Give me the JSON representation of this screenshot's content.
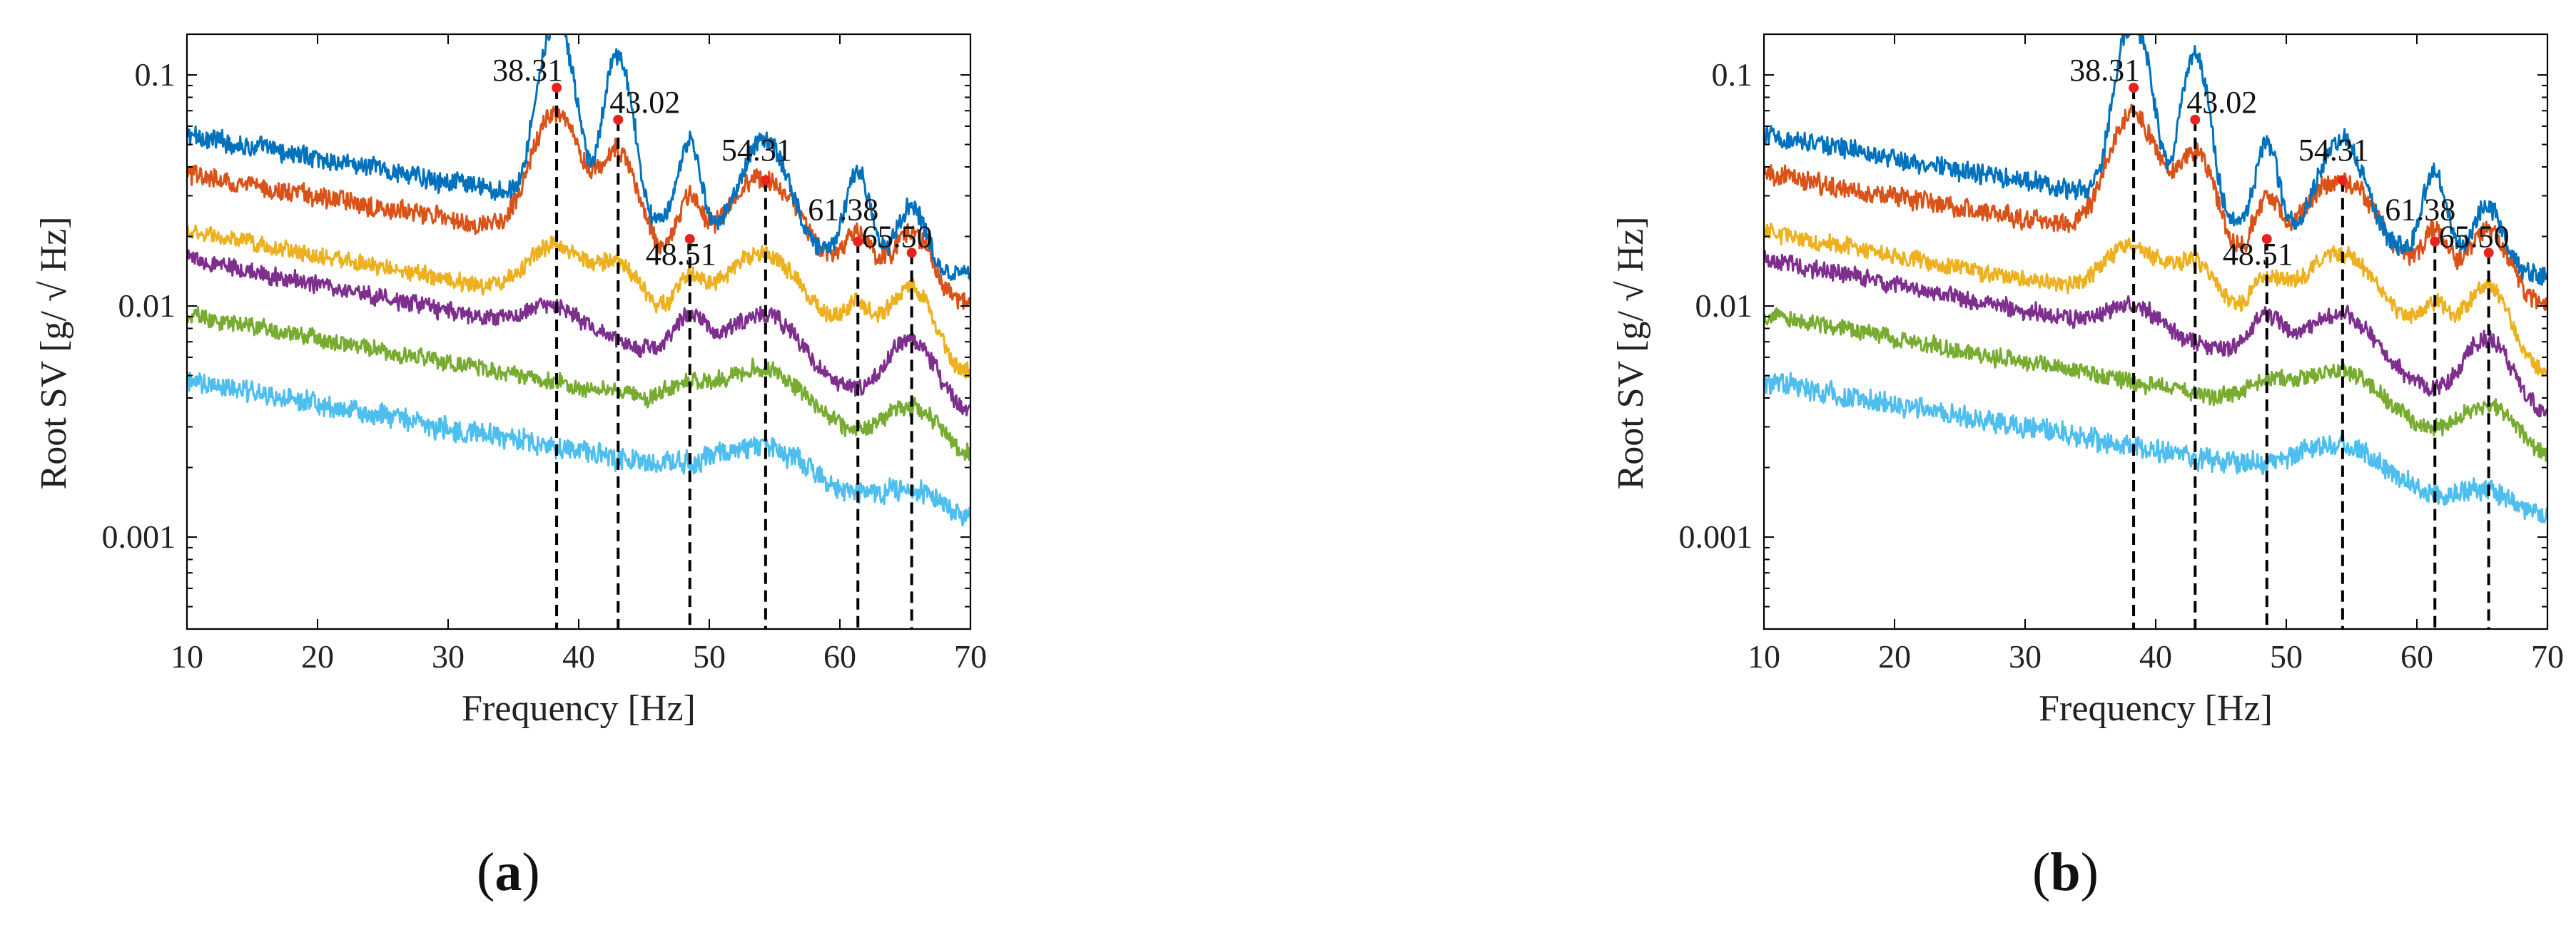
{
  "chart_data": [
    {
      "panel": "(a)",
      "type": "line",
      "xlabel": "Frequency [Hz]",
      "ylabel": "Root SV [g/ √ Hz]",
      "xlim": [
        10,
        70
      ],
      "ylim": [
        0.0004,
        0.15
      ],
      "yscale": "log",
      "xticks": [
        10,
        20,
        30,
        40,
        50,
        60,
        70
      ],
      "yticks": [
        {
          "value": 0.001,
          "label": "0.001"
        },
        {
          "value": 0.01,
          "label": "0.01"
        },
        {
          "value": 0.1,
          "label": "0.1"
        }
      ],
      "grid": false,
      "peaks": [
        {
          "label": "38.31",
          "x": 38.31,
          "y": 0.088
        },
        {
          "label": "43.02",
          "x": 43.02,
          "y": 0.064
        },
        {
          "label": "48.51",
          "x": 48.51,
          "y": 0.0195
        },
        {
          "label": "54.31",
          "x": 54.31,
          "y": 0.035
        },
        {
          "label": "61.38",
          "x": 61.38,
          "y": 0.019
        },
        {
          "label": "65.50",
          "x": 65.5,
          "y": 0.017
        }
      ],
      "series": [
        {
          "color": "#0072bd",
          "start": 0.055,
          "end": 0.0135,
          "noise": 0.08,
          "peaks": [
            [
              38.31,
              5.0,
              1.1
            ],
            [
              43.02,
              3.8,
              0.9
            ],
            [
              48.51,
              1.3,
              0.7
            ],
            [
              54.31,
              1.7,
              1.5
            ],
            [
              61.38,
              1.3,
              0.8
            ],
            [
              65.5,
              0.8,
              1.0
            ]
          ]
        },
        {
          "color": "#d95319",
          "start": 0.037,
          "end": 0.01,
          "noise": 0.08,
          "peaks": [
            [
              38.31,
              2.4,
              1.6
            ],
            [
              43.02,
              1.6,
              1.3
            ],
            [
              48.51,
              0.8,
              0.8
            ],
            [
              54.31,
              1.5,
              2.5
            ],
            [
              61.38,
              0.7,
              1.0
            ],
            [
              65.5,
              0.9,
              1.4
            ]
          ]
        },
        {
          "color": "#edb120",
          "start": 0.021,
          "end": 0.005,
          "noise": 0.07,
          "peaks": [
            [
              38.31,
              0.7,
              2.0
            ],
            [
              43.02,
              0.6,
              1.6
            ],
            [
              48.51,
              0.5,
              1.0
            ],
            [
              54.31,
              1.3,
              2.8
            ],
            [
              61.38,
              0.6,
              1.2
            ],
            [
              65.5,
              1.2,
              1.5
            ]
          ]
        },
        {
          "color": "#7e2f8e",
          "start": 0.016,
          "end": 0.0034,
          "noise": 0.07,
          "peaks": [
            [
              38.31,
              0.3,
              2.0
            ],
            [
              48.51,
              0.5,
              1.2
            ],
            [
              54.31,
              0.8,
              2.5
            ],
            [
              65.5,
              0.9,
              1.6
            ]
          ]
        },
        {
          "color": "#77ac30",
          "start": 0.0092,
          "end": 0.0022,
          "noise": 0.07,
          "peaks": [
            [
              48.51,
              0.2,
              1.5
            ],
            [
              54.31,
              0.65,
              3.0
            ],
            [
              65.5,
              0.5,
              2.0
            ]
          ]
        },
        {
          "color": "#4dbeee",
          "start": 0.0047,
          "end": 0.0012,
          "noise": 0.09,
          "peaks": [
            [
              54.31,
              0.45,
              3.0
            ],
            [
              65.5,
              0.2,
              2.0
            ]
          ]
        }
      ]
    },
    {
      "panel": "(b)",
      "type": "line",
      "xlabel": "Frequency [Hz]",
      "ylabel": "Root SV [g/ √ Hz]",
      "xlim": [
        10,
        70
      ],
      "ylim": [
        0.0004,
        0.15
      ],
      "yscale": "log",
      "xticks": [
        10,
        20,
        30,
        40,
        50,
        60,
        70
      ],
      "yticks": [
        {
          "value": 0.001,
          "label": "0.001"
        },
        {
          "value": 0.01,
          "label": "0.01"
        },
        {
          "value": 0.1,
          "label": "0.1"
        }
      ],
      "grid": false,
      "peaks": [
        {
          "label": "38.31",
          "x": 38.31,
          "y": 0.088
        },
        {
          "label": "43.02",
          "x": 43.02,
          "y": 0.064
        },
        {
          "label": "48.51",
          "x": 48.51,
          "y": 0.0195
        },
        {
          "label": "54.31",
          "x": 54.31,
          "y": 0.035
        },
        {
          "label": "61.38",
          "x": 61.38,
          "y": 0.019
        },
        {
          "label": "65.50",
          "x": 65.5,
          "y": 0.017
        }
      ],
      "series": [
        {
          "color": "#0072bd",
          "start": 0.055,
          "end": 0.0135,
          "noise": 0.08,
          "peaks": [
            [
              38.31,
              5.0,
              1.1
            ],
            [
              43.02,
              3.8,
              0.9
            ],
            [
              48.51,
              1.3,
              0.7
            ],
            [
              54.31,
              1.7,
              1.5
            ],
            [
              61.38,
              1.3,
              0.8
            ],
            [
              65.5,
              0.8,
              1.0
            ]
          ]
        },
        {
          "color": "#d95319",
          "start": 0.037,
          "end": 0.01,
          "noise": 0.08,
          "peaks": [
            [
              38.31,
              2.4,
              1.6
            ],
            [
              43.02,
              1.6,
              1.3
            ],
            [
              48.51,
              0.8,
              0.8
            ],
            [
              54.31,
              1.5,
              2.5
            ],
            [
              61.38,
              0.7,
              1.0
            ],
            [
              65.5,
              0.9,
              1.4
            ]
          ]
        },
        {
          "color": "#edb120",
          "start": 0.021,
          "end": 0.005,
          "noise": 0.07,
          "peaks": [
            [
              38.31,
              0.7,
              2.0
            ],
            [
              43.02,
              0.6,
              1.6
            ],
            [
              48.51,
              0.5,
              1.0
            ],
            [
              54.31,
              1.3,
              2.8
            ],
            [
              61.38,
              0.6,
              1.2
            ],
            [
              65.5,
              1.2,
              1.5
            ]
          ]
        },
        {
          "color": "#7e2f8e",
          "start": 0.016,
          "end": 0.0034,
          "noise": 0.07,
          "peaks": [
            [
              38.31,
              0.3,
              2.0
            ],
            [
              48.51,
              0.5,
              1.2
            ],
            [
              54.31,
              0.8,
              2.5
            ],
            [
              65.5,
              0.9,
              1.6
            ]
          ]
        },
        {
          "color": "#77ac30",
          "start": 0.0092,
          "end": 0.0022,
          "noise": 0.07,
          "peaks": [
            [
              48.51,
              0.2,
              1.5
            ],
            [
              54.31,
              0.65,
              3.0
            ],
            [
              65.5,
              0.5,
              2.0
            ]
          ]
        },
        {
          "color": "#4dbeee",
          "start": 0.0047,
          "end": 0.0012,
          "noise": 0.09,
          "peaks": [
            [
              54.31,
              0.45,
              3.0
            ],
            [
              65.5,
              0.2,
              2.0
            ]
          ]
        }
      ]
    }
  ],
  "captions": {
    "a": {
      "open": "(",
      "letter": "a",
      "close": ")"
    },
    "b": {
      "open": "(",
      "letter": "b",
      "close": ")"
    }
  }
}
